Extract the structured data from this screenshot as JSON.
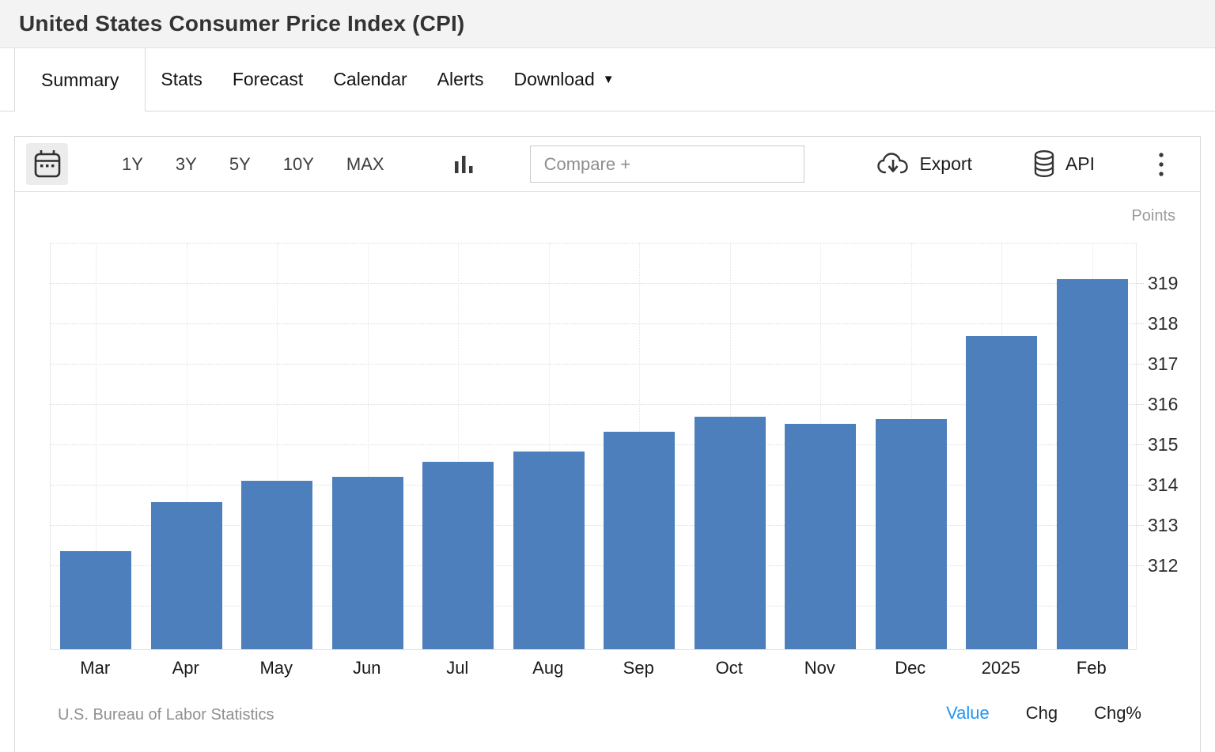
{
  "header": {
    "title": "United States Consumer Price Index (CPI)"
  },
  "tabs": {
    "items": [
      {
        "label": "Summary",
        "active": true
      },
      {
        "label": "Stats",
        "active": false
      },
      {
        "label": "Forecast",
        "active": false
      },
      {
        "label": "Calendar",
        "active": false
      },
      {
        "label": "Alerts",
        "active": false
      },
      {
        "label": "Download",
        "active": false,
        "has_caret": true
      }
    ]
  },
  "toolbar": {
    "ranges": [
      "1Y",
      "3Y",
      "5Y",
      "10Y",
      "MAX"
    ],
    "compare_placeholder": "Compare +",
    "export_label": "Export",
    "api_label": "API",
    "icons": [
      "calendar-icon",
      "bar-chart-type-icon",
      "cloud-download-icon",
      "database-icon",
      "kebab-menu-icon"
    ]
  },
  "chart_data": {
    "type": "bar",
    "title": "United States Consumer Price Index (CPI)",
    "unit_label": "Points",
    "categories": [
      "Mar",
      "Apr",
      "May",
      "Jun",
      "Jul",
      "Aug",
      "Sep",
      "Oct",
      "Nov",
      "Dec",
      "2025",
      "Feb"
    ],
    "values": [
      312.33,
      313.55,
      314.07,
      314.18,
      314.54,
      314.8,
      315.3,
      315.66,
      315.49,
      315.61,
      317.67,
      319.08
    ],
    "xlabel": "",
    "ylabel": "Points",
    "ylim": [
      309.9,
      320.0
    ],
    "yticks": [
      312,
      313,
      314,
      315,
      316,
      317,
      318,
      319
    ],
    "grid": true,
    "legend_position": "none",
    "bar_color": "#4d7fbd"
  },
  "footer": {
    "source": "U.S. Bureau of Labor Statistics",
    "modes": [
      {
        "label": "Value",
        "active": true
      },
      {
        "label": "Chg",
        "active": false
      },
      {
        "label": "Chg%",
        "active": false
      }
    ],
    "active_color": "#2196F3"
  }
}
